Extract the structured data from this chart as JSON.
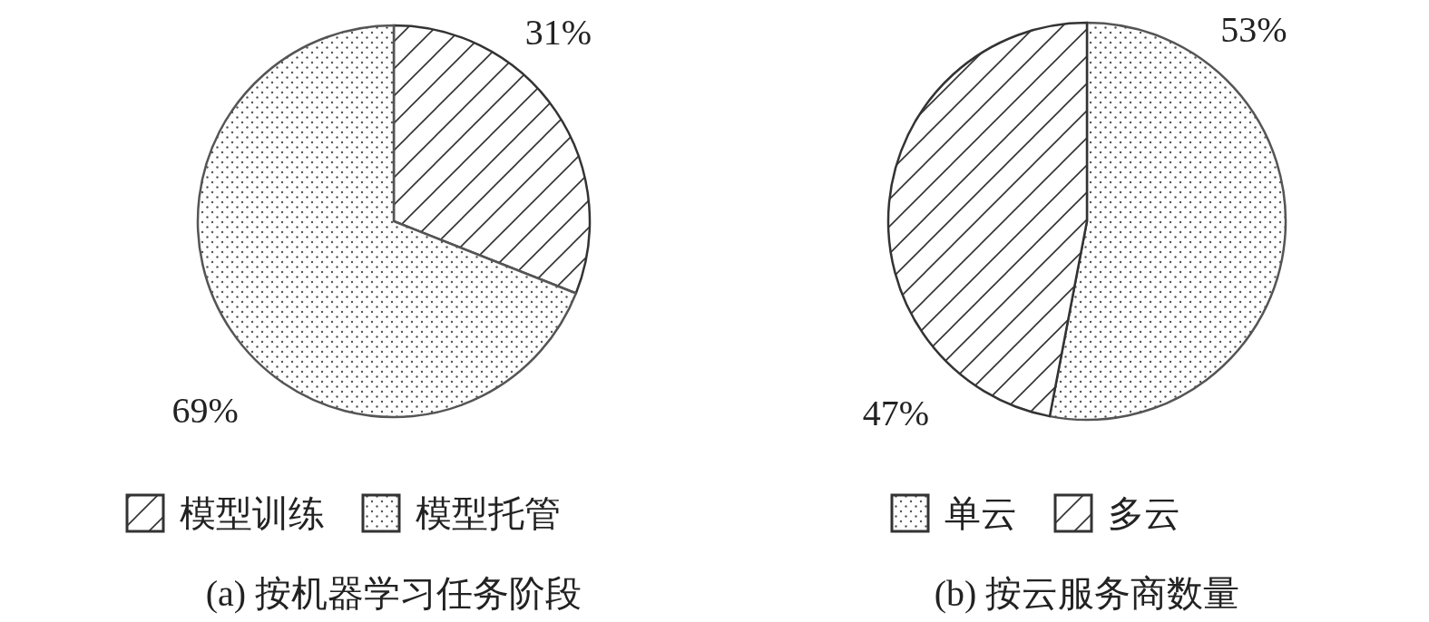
{
  "chart_data": [
    {
      "type": "pie",
      "title": "(a) 按机器学习任务阶段",
      "categories": [
        "模型训练",
        "模型托管"
      ],
      "values": [
        31,
        69
      ],
      "colors": [
        "#333333",
        "#555555"
      ],
      "value_labels": [
        "31%",
        "69%"
      ],
      "legend": "bottom"
    },
    {
      "type": "pie",
      "title": "(b) 按云服务商数量",
      "categories": [
        "单云",
        "多云"
      ],
      "values": [
        53,
        47
      ],
      "colors": [
        "#555555",
        "#333333"
      ],
      "value_labels": [
        "53%",
        "47%"
      ],
      "legend": "bottom"
    }
  ]
}
